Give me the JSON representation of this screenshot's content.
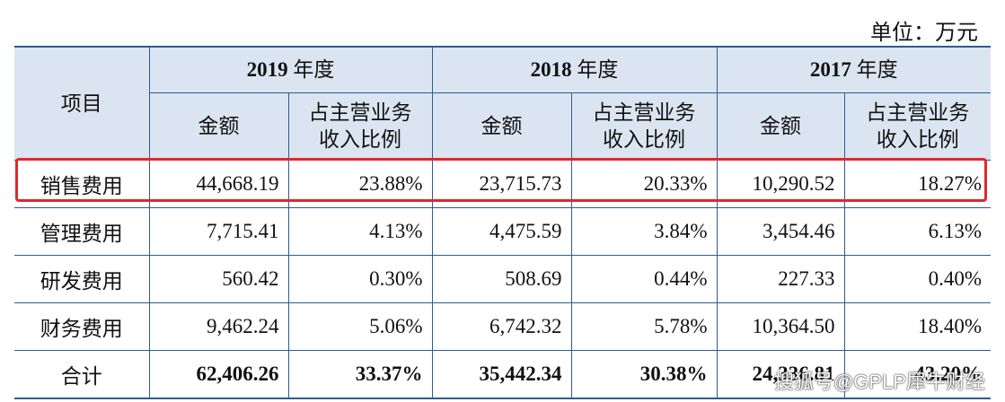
{
  "unit_label": "单位：万元",
  "table": {
    "item_header": "项目",
    "years": [
      {
        "num": "2019",
        "suffix": " 年度"
      },
      {
        "num": "2018",
        "suffix": " 年度"
      },
      {
        "num": "2017",
        "suffix": " 年度"
      }
    ],
    "sub_headers": {
      "amount": "金额",
      "ratio_line1": "占主营业务",
      "ratio_line2": "收入比例"
    },
    "rows": [
      {
        "name": "销售费用",
        "values": [
          "44,668.19",
          "23.88%",
          "23,715.73",
          "20.33%",
          "10,290.52",
          "18.27%"
        ],
        "highlighted": true
      },
      {
        "name": "管理费用",
        "values": [
          "7,715.41",
          "4.13%",
          "4,475.59",
          "3.84%",
          "3,454.46",
          "6.13%"
        ]
      },
      {
        "name": "研发费用",
        "values": [
          "560.42",
          "0.30%",
          "508.69",
          "0.44%",
          "227.33",
          "0.40%"
        ]
      },
      {
        "name": "财务费用",
        "values": [
          "9,462.24",
          "5.06%",
          "6,742.32",
          "5.78%",
          "10,364.50",
          "18.40%"
        ]
      },
      {
        "name": "合计",
        "values": [
          "62,406.26",
          "33.37%",
          "35,442.34",
          "30.38%",
          "24,336.81",
          "43.20%"
        ],
        "total": true
      }
    ]
  },
  "highlight_color": "#e0282e",
  "border_color": "#2d5c8f",
  "header_bg": "#dbe5f1",
  "watermark": "搜狐号@GPLP犀牛财经"
}
